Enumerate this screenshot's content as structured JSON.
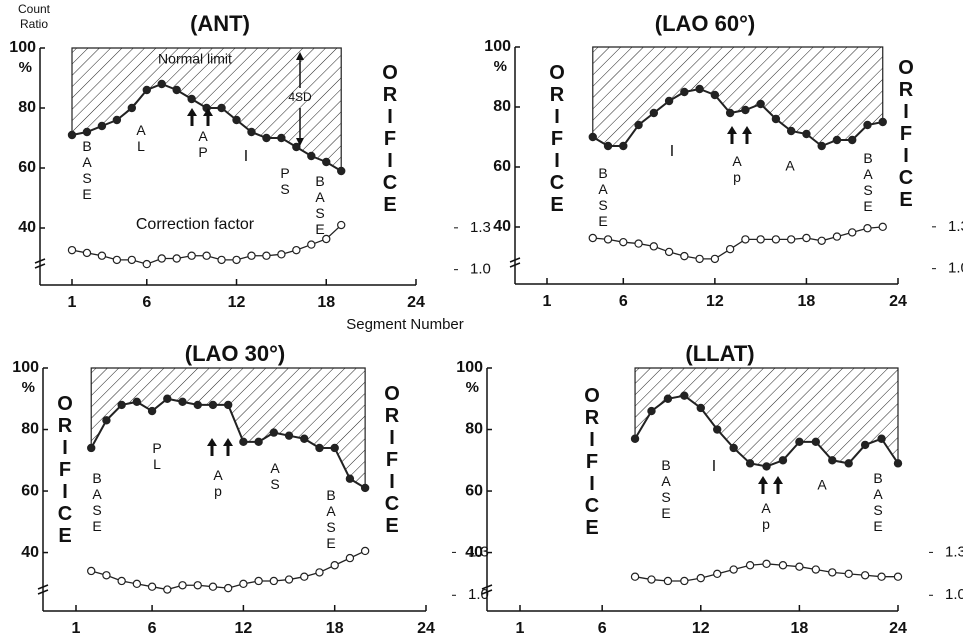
{
  "chart_data": [
    {
      "type": "line",
      "title": "(ANT)",
      "y_label": "Count Ratio",
      "y_unit": "%",
      "x_label": "Segment Number",
      "x": [
        1,
        2,
        3,
        4,
        5,
        6,
        7,
        8,
        9,
        10,
        11,
        12,
        13,
        14,
        15,
        16,
        17,
        18,
        19
      ],
      "series": [
        {
          "color": "#222",
          "marker_fill": "#222",
          "values": [
            71,
            72,
            74,
            76,
            80,
            86,
            88,
            86,
            83,
            80,
            80,
            76,
            72,
            70,
            70,
            67,
            64,
            62,
            59
          ]
        },
        {
          "name": "Correction factor",
          "axis": "y2",
          "color": "#222",
          "marker_fill": "#fff",
          "values": [
            1.14,
            1.12,
            1.1,
            1.07,
            1.07,
            1.04,
            1.08,
            1.08,
            1.1,
            1.1,
            1.07,
            1.07,
            1.1,
            1.1,
            1.11,
            1.14,
            1.18,
            1.22,
            1.32
          ]
        }
      ],
      "xlim": [
        1,
        24
      ],
      "xticks": [
        1,
        6,
        12,
        18,
        24
      ],
      "ylim": [
        21,
        100
      ],
      "yticks": [
        40,
        60,
        80,
        100
      ],
      "y2lim": [
        0.89,
        2.59
      ],
      "y2ticks": [
        {
          "value": 1,
          "label": "1.0"
        },
        1.3
      ],
      "normal_limit_hatch": true,
      "annotations": [
        "Normal limit",
        "4SD",
        "BASE",
        "AL",
        "AP",
        "I",
        "PS",
        "BASE",
        "ORIFICE"
      ]
    },
    {
      "type": "line",
      "title": "(LAO 60°)",
      "y_unit": "%",
      "x": [
        4,
        5,
        6,
        7,
        8,
        9,
        10,
        11,
        12,
        13,
        14,
        15,
        16,
        17,
        18,
        19,
        20,
        21,
        22,
        23
      ],
      "series": [
        {
          "color": "#222",
          "marker_fill": "#222",
          "values": [
            70,
            67,
            67,
            74,
            78,
            82,
            85,
            86,
            84,
            78,
            79,
            81,
            76,
            72,
            71,
            67,
            69,
            69,
            74,
            75
          ]
        },
        {
          "axis": "y2",
          "color": "#222",
          "marker_fill": "#fff",
          "values": [
            1.22,
            1.21,
            1.19,
            1.18,
            1.16,
            1.12,
            1.09,
            1.07,
            1.07,
            1.14,
            1.21,
            1.21,
            1.21,
            1.21,
            1.22,
            1.2,
            1.23,
            1.26,
            1.29,
            1.3
          ]
        }
      ],
      "xlim": [
        1,
        24
      ],
      "xticks": [
        1,
        6,
        12,
        18,
        24
      ],
      "ylim": [
        21,
        100
      ],
      "yticks": [
        40,
        60,
        80,
        100
      ],
      "y2lim": [
        0.89,
        2.59
      ],
      "y2ticks": [
        {
          "value": 1,
          "label": "1.0"
        },
        1.3
      ],
      "normal_limit_hatch": true,
      "annotations": [
        "ORIFICE",
        "ORIFICE",
        "BASE",
        "I",
        "Ap",
        "A",
        "BASE"
      ]
    },
    {
      "type": "line",
      "title": "(LAO 30°)",
      "y_unit": "%",
      "x": [
        2,
        3,
        4,
        5,
        6,
        7,
        8,
        9,
        10,
        11,
        12,
        13,
        14,
        15,
        16,
        17,
        18,
        19,
        20
      ],
      "series": [
        {
          "color": "#222",
          "marker_fill": "#222",
          "values": [
            74,
            83,
            88,
            89,
            86,
            90,
            89,
            88,
            88,
            88,
            76,
            76,
            79,
            78,
            77,
            74,
            74,
            64,
            61
          ]
        },
        {
          "axis": "y2",
          "color": "#222",
          "marker_fill": "#fff",
          "values": [
            1.17,
            1.14,
            1.1,
            1.08,
            1.06,
            1.04,
            1.07,
            1.07,
            1.06,
            1.05,
            1.08,
            1.1,
            1.1,
            1.11,
            1.13,
            1.16,
            1.21,
            1.26,
            1.31
          ]
        }
      ],
      "xlim": [
        1,
        24
      ],
      "xticks": [
        1,
        6,
        12,
        18,
        24
      ],
      "ylim": [
        21,
        100
      ],
      "yticks": [
        40,
        60,
        80,
        100
      ],
      "y2lim": [
        0.89,
        2.59
      ],
      "y2ticks": [
        {
          "value": 1,
          "label": "1.0"
        },
        1.3
      ],
      "normal_limit_hatch": true,
      "annotations": [
        "ORIFICE",
        "ORIFICE",
        "BASE",
        "PL",
        "Ap",
        "AS",
        "BASE"
      ]
    },
    {
      "type": "line",
      "title": "(LLAT)",
      "y_unit": "%",
      "x": [
        8,
        9,
        10,
        11,
        12,
        13,
        14,
        15,
        16,
        17,
        18,
        19,
        20,
        21,
        22,
        23,
        24
      ],
      "series": [
        {
          "color": "#222",
          "marker_fill": "#222",
          "values": [
            77,
            86,
            90,
            91,
            87,
            80,
            74,
            69,
            68,
            70,
            76,
            76,
            70,
            69,
            75,
            77,
            69
          ]
        },
        {
          "axis": "y2",
          "color": "#222",
          "marker_fill": "#fff",
          "values": [
            1.13,
            1.11,
            1.1,
            1.1,
            1.12,
            1.15,
            1.18,
            1.21,
            1.22,
            1.21,
            1.2,
            1.18,
            1.16,
            1.15,
            1.14,
            1.13,
            1.13
          ]
        }
      ],
      "xlim": [
        1,
        24
      ],
      "xticks": [
        1,
        6,
        12,
        18,
        24
      ],
      "ylim": [
        21,
        100
      ],
      "yticks": [
        40,
        60,
        80,
        100
      ],
      "y2lim": [
        0.89,
        2.59
      ],
      "y2ticks": [
        {
          "value": 1,
          "label": "1.0"
        },
        1.3
      ],
      "normal_limit_hatch": true,
      "annotations": [
        "ORIFICE",
        "BASE",
        "I",
        "Ap",
        "A",
        "BASE"
      ]
    }
  ]
}
